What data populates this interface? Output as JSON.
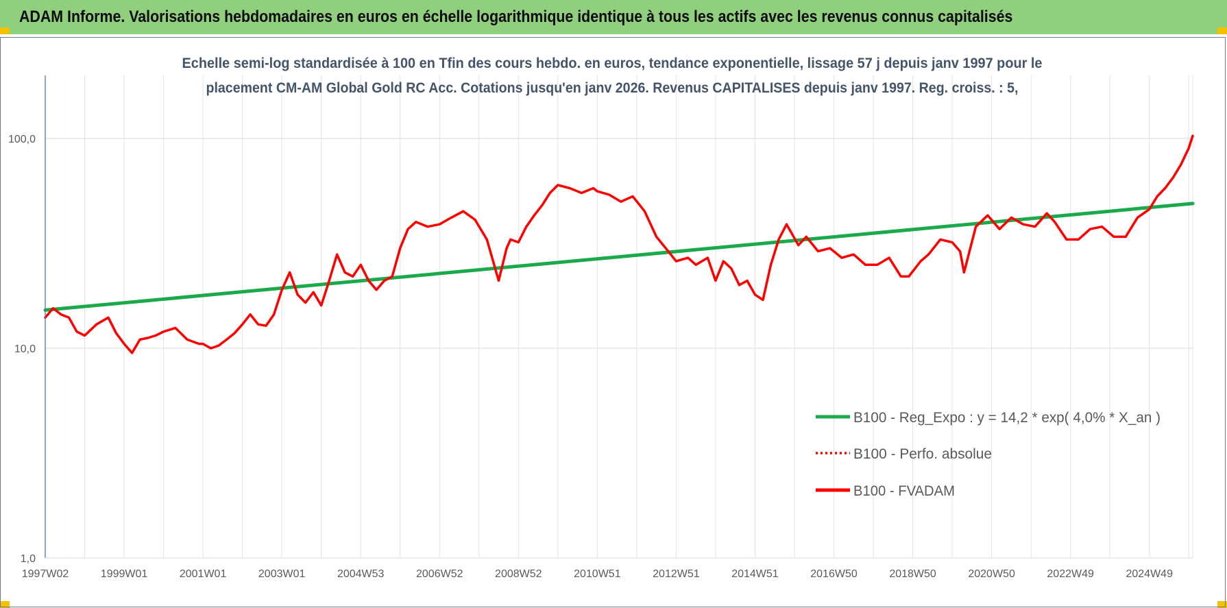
{
  "banner": {
    "title": "ADAM Informe. Valorisations hebdomadaires en euros en échelle logarithmique identique à tous les actifs avec les revenus connus capitalisés"
  },
  "chart_data": {
    "type": "line",
    "title": "",
    "subtitle_lines": [
      "Echelle semi-log standardisée à 100 en Tfin des cours hebdo. en euros, tendance exponentielle, lissage 57 j depuis janv 1997 pour le",
      "placement CM-AM Global Gold RC Acc. Cotations jusqu'en janv 2026. Revenus CAPITALISES depuis janv 1997. Reg. croiss. : 5,"
    ],
    "y_scale": "log",
    "ylim": [
      1,
      200
    ],
    "xlim": [
      1997.0,
      2026.1
    ],
    "y_ticks": [
      {
        "value": 100,
        "label": "100,0"
      },
      {
        "value": 10,
        "label": "10,0"
      },
      {
        "value": 1,
        "label": "1,0"
      }
    ],
    "x_ticks": [
      {
        "value": 1997.0,
        "label": "1997W02"
      },
      {
        "value": 1999.0,
        "label": "1999W01"
      },
      {
        "value": 2001.0,
        "label": "2001W01"
      },
      {
        "value": 2003.0,
        "label": "2003W01"
      },
      {
        "value": 2005.0,
        "label": "2004W53"
      },
      {
        "value": 2007.0,
        "label": "2006W52"
      },
      {
        "value": 2009.0,
        "label": "2008W52"
      },
      {
        "value": 2011.0,
        "label": "2010W51"
      },
      {
        "value": 2013.0,
        "label": "2012W51"
      },
      {
        "value": 2015.0,
        "label": "2014W51"
      },
      {
        "value": 2017.0,
        "label": "2016W50"
      },
      {
        "value": 2019.0,
        "label": "2018W50"
      },
      {
        "value": 2021.0,
        "label": "2020W50"
      },
      {
        "value": 2023.0,
        "label": "2022W49"
      },
      {
        "value": 2025.0,
        "label": "2024W49"
      }
    ],
    "grid": "vertical",
    "legend_position": "lower-right",
    "series": [
      {
        "name": "B100 - Reg_Expo : y = 14,2 * exp( 4,0% *  X_an )",
        "color": "#1aaa4b",
        "style": "solid",
        "x": [
          1997.0,
          2026.1
        ],
        "y": [
          15.2,
          49.0
        ]
      },
      {
        "name": "B100 - Perfo. absolue",
        "color": "#ff0000",
        "style": "dotted",
        "x": [],
        "y": []
      },
      {
        "name": "B100 - FVADAM",
        "color": "#ff0000",
        "style": "solid",
        "x": [
          1997.0,
          1997.2,
          1997.4,
          1997.6,
          1997.8,
          1998.0,
          1998.3,
          1998.6,
          1998.8,
          1999.0,
          1999.2,
          1999.4,
          1999.6,
          1999.8,
          2000.0,
          2000.3,
          2000.6,
          2000.9,
          2001.0,
          2001.2,
          2001.4,
          2001.6,
          2001.8,
          2002.0,
          2002.2,
          2002.4,
          2002.6,
          2002.8,
          2003.0,
          2003.2,
          2003.4,
          2003.6,
          2003.8,
          2004.0,
          2004.2,
          2004.4,
          2004.6,
          2004.8,
          2005.0,
          2005.2,
          2005.4,
          2005.6,
          2005.8,
          2006.0,
          2006.2,
          2006.4,
          2006.7,
          2007.0,
          2007.3,
          2007.6,
          2007.9,
          2008.2,
          2008.5,
          2008.7,
          2008.8,
          2009.0,
          2009.2,
          2009.4,
          2009.6,
          2009.8,
          2010.0,
          2010.3,
          2010.6,
          2010.9,
          2011.0,
          2011.3,
          2011.6,
          2011.9,
          2012.2,
          2012.5,
          2012.8,
          2013.0,
          2013.3,
          2013.5,
          2013.8,
          2014.0,
          2014.2,
          2014.4,
          2014.6,
          2014.8,
          2015.0,
          2015.2,
          2015.4,
          2015.6,
          2015.8,
          2016.1,
          2016.3,
          2016.6,
          2016.9,
          2017.2,
          2017.5,
          2017.8,
          2018.1,
          2018.4,
          2018.7,
          2018.9,
          2019.2,
          2019.4,
          2019.7,
          2020.0,
          2020.2,
          2020.3,
          2020.6,
          2020.9,
          2021.2,
          2021.5,
          2021.8,
          2022.1,
          2022.4,
          2022.6,
          2022.9,
          2023.2,
          2023.5,
          2023.8,
          2024.1,
          2024.4,
          2024.7,
          2025.0,
          2025.2,
          2025.4,
          2025.6,
          2025.8,
          2026.0,
          2026.1
        ],
        "y": [
          14.0,
          15.5,
          14.5,
          14.0,
          12.0,
          11.5,
          13.0,
          14.0,
          11.8,
          10.5,
          9.5,
          11.0,
          11.2,
          11.5,
          12.0,
          12.5,
          11.0,
          10.5,
          10.5,
          10.0,
          10.3,
          11.0,
          11.8,
          13.0,
          14.5,
          13.0,
          12.8,
          14.5,
          19.0,
          23.0,
          18.0,
          16.5,
          18.5,
          16.0,
          21.0,
          28.0,
          23.0,
          22.0,
          25.0,
          21.0,
          19.0,
          21.0,
          22.0,
          30.0,
          37.0,
          40.0,
          38.0,
          39.0,
          42.0,
          45.0,
          41.0,
          33.0,
          21.0,
          30.0,
          33.0,
          32.0,
          38.0,
          43.0,
          48.0,
          55.0,
          60.0,
          58.0,
          55.0,
          58.0,
          56.0,
          54.0,
          50.0,
          53.0,
          45.0,
          34.0,
          29.0,
          26.0,
          27.0,
          25.0,
          27.0,
          21.0,
          26.0,
          24.0,
          20.0,
          21.0,
          18.0,
          17.0,
          25.0,
          33.0,
          39.0,
          31.0,
          34.0,
          29.0,
          30.0,
          27.0,
          28.0,
          25.0,
          25.0,
          27.0,
          22.0,
          22.0,
          26.0,
          28.0,
          33.0,
          32.0,
          29.0,
          23.0,
          38.0,
          43.0,
          37.0,
          42.0,
          39.0,
          38.0,
          44.0,
          40.0,
          33.0,
          33.0,
          37.0,
          38.0,
          34.0,
          34.0,
          42.0,
          46.0,
          53.0,
          58.0,
          65.0,
          75.0,
          90.0,
          103.0
        ]
      }
    ]
  }
}
